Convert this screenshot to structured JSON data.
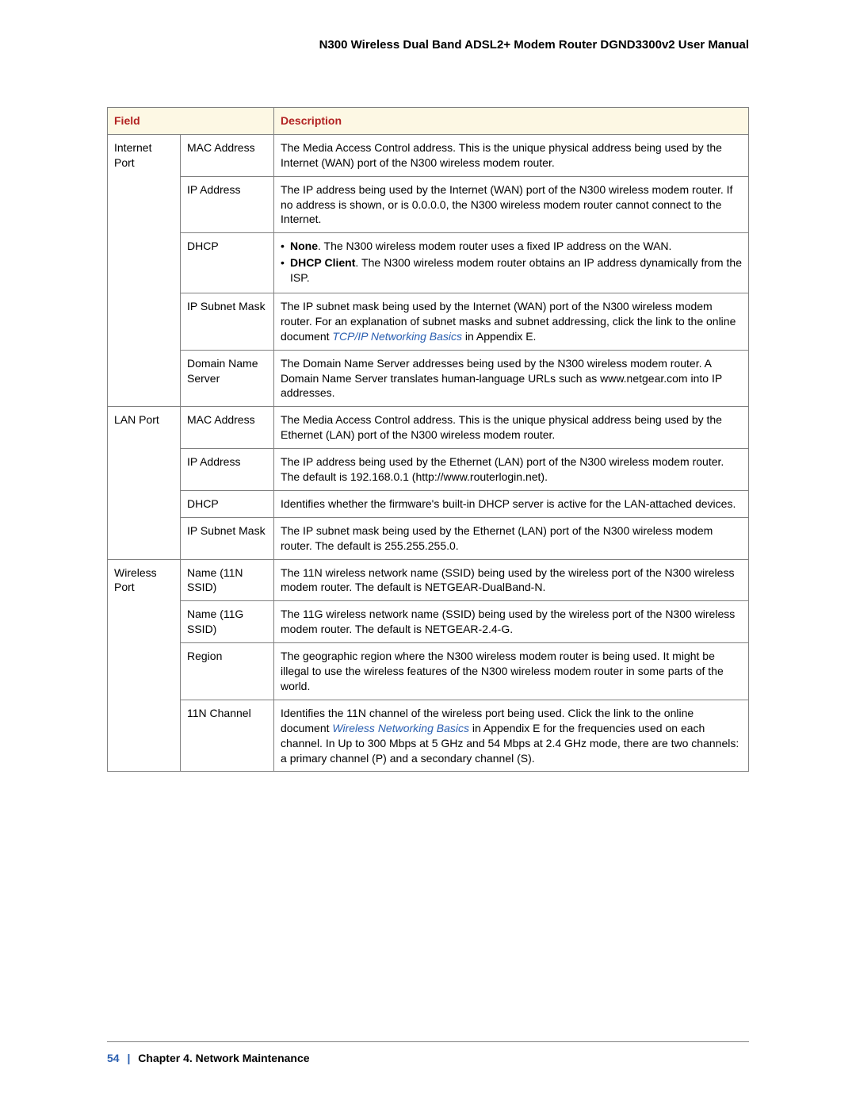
{
  "header": {
    "title": "N300 Wireless Dual Band ADSL2+ Modem Router DGND3300v2 User Manual"
  },
  "table": {
    "head": {
      "field": "Field",
      "desc": "Description"
    },
    "groups": [
      {
        "label": "Internet Port",
        "rows": [
          {
            "field": "MAC Address",
            "desc": "The Media Access Control address. This is the unique physical address being used by the Internet (WAN) port of the N300 wireless modem router."
          },
          {
            "field": "IP Address",
            "desc": "The IP address being used by the Internet (WAN) port of the N300 wireless modem router. If no address is shown, or is 0.0.0.0, the N300 wireless modem router cannot connect to the Internet."
          },
          {
            "field": "DHCP",
            "bullets": [
              {
                "b": "None",
                "t": ". The N300 wireless modem router uses a fixed IP address on the WAN."
              },
              {
                "b": "DHCP Client",
                "t": ". The N300 wireless modem router obtains an IP address dynamically from the ISP."
              }
            ]
          },
          {
            "field": "IP Subnet Mask",
            "richdesc": {
              "pre": "The IP subnet mask being used by the Internet (WAN) port of the N300 wireless modem router. For an explanation of subnet masks and subnet addressing, click the link to the online document ",
              "link": "TCP/IP Networking Basics",
              "post": " in Appendix E."
            }
          },
          {
            "field": "Domain Name Server",
            "desc": "The Domain Name Server addresses being used by the N300 wireless modem router. A Domain Name Server translates human-language URLs such as www.netgear.com into IP addresses."
          }
        ]
      },
      {
        "label": "LAN Port",
        "rows": [
          {
            "field": "MAC Address",
            "desc": "The Media Access Control address. This is the unique physical address being used by the Ethernet (LAN) port of the N300 wireless modem router."
          },
          {
            "field": "IP Address",
            "desc": "The IP address being used by the Ethernet (LAN) port of the N300 wireless modem router. The default is 192.168.0.1 (http://www.routerlogin.net)."
          },
          {
            "field": "DHCP",
            "desc": "Identifies whether the firmware's built-in DHCP server is active for the LAN-attached devices."
          },
          {
            "field": "IP Subnet Mask",
            "desc": "The IP subnet mask being used by the Ethernet (LAN) port of the N300 wireless modem router. The default is 255.255.255.0."
          }
        ]
      },
      {
        "label": "Wireless Port",
        "rows": [
          {
            "field": "Name (11N SSID)",
            "desc": "The 11N wireless network name (SSID) being used by the wireless port of the N300 wireless modem router. The default is NETGEAR-DualBand-N."
          },
          {
            "field": "Name (11G SSID)",
            "desc": "The 11G wireless network name (SSID) being used by the wireless port of the N300 wireless modem router. The default is NETGEAR-2.4-G."
          },
          {
            "field": "Region",
            "desc": "The geographic region where the N300 wireless modem router is being used. It might be illegal to use the wireless features of the N300 wireless modem router in some parts of the world."
          },
          {
            "field": "11N Channel",
            "richdesc": {
              "pre": "Identifies the 11N channel of the wireless port being used. Click the link to the online document ",
              "link": "Wireless Networking Basics",
              "post": " in Appendix E for the frequencies used on each channel. In Up to 300 Mbps at 5 GHz and 54 Mbps at 2.4 GHz mode, there are two channels: a primary channel (P) and a secondary channel (S)."
            }
          }
        ]
      }
    ]
  },
  "footer": {
    "page": "54",
    "sep": "|",
    "chapter": "Chapter 4.  Network Maintenance"
  },
  "colors": {
    "header_bg": "#fdf8e4",
    "header_text": "#b22222",
    "border": "#808080",
    "link": "#2a5fb0",
    "text": "#000000"
  }
}
